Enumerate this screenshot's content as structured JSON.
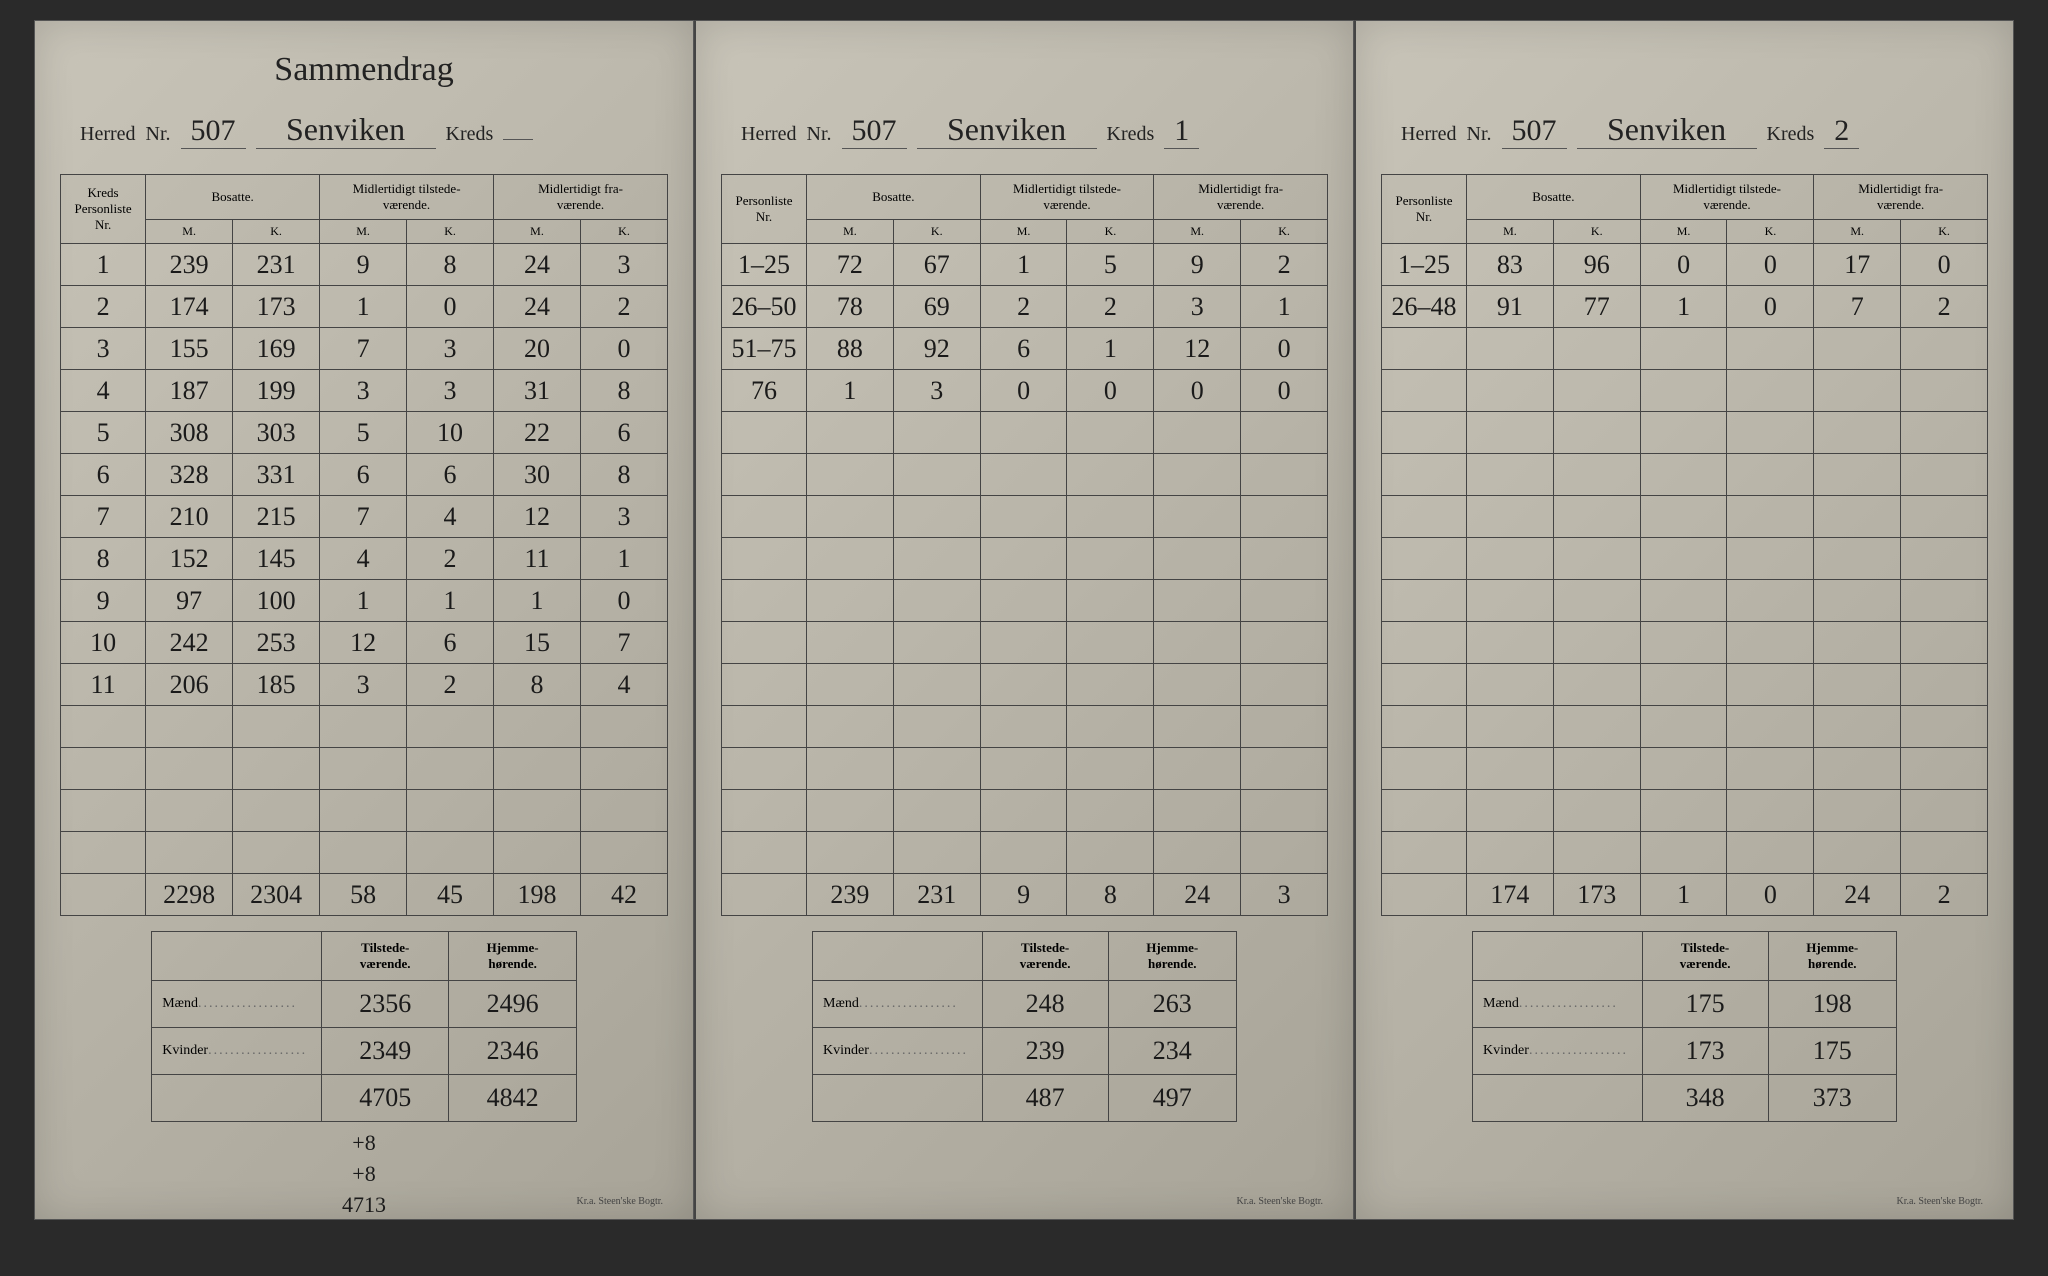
{
  "pages": [
    {
      "super_title": "Sammendrag",
      "header": {
        "herred_label": "Herred",
        "nr_label": "Nr.",
        "nr": "507",
        "name": "Senviken",
        "kreds_label": "Kreds",
        "kreds": ""
      },
      "col_nr": "Kreds\nPersonliste\nNr.",
      "groups": [
        "Bosatte.",
        "Midlertidigt tilstede-\nværende.",
        "Midlertidigt fra-\nværende."
      ],
      "sub": [
        "M.",
        "K.",
        "M.",
        "K.",
        "M.",
        "K."
      ],
      "rows": [
        [
          "1",
          "239",
          "231",
          "9",
          "8",
          "24",
          "3"
        ],
        [
          "2",
          "174",
          "173",
          "1",
          "0",
          "24",
          "2"
        ],
        [
          "3",
          "155",
          "169",
          "7",
          "3",
          "20",
          "0"
        ],
        [
          "4",
          "187",
          "199",
          "3",
          "3",
          "31",
          "8"
        ],
        [
          "5",
          "308",
          "303",
          "5",
          "10",
          "22",
          "6"
        ],
        [
          "6",
          "328",
          "331",
          "6",
          "6",
          "30",
          "8"
        ],
        [
          "7",
          "210",
          "215",
          "7",
          "4",
          "12",
          "3"
        ],
        [
          "8",
          "152",
          "145",
          "4",
          "2",
          "11",
          "1"
        ],
        [
          "9",
          "97",
          "100",
          "1",
          "1",
          "1",
          "0"
        ],
        [
          "10",
          "242",
          "253",
          "12",
          "6",
          "15",
          "7"
        ],
        [
          "11",
          "206",
          "185",
          "3",
          "2",
          "8",
          "4"
        ]
      ],
      "blank_rows": 4,
      "totals": [
        "",
        "2298",
        "2304",
        "58",
        "45",
        "198",
        "42"
      ],
      "summary": {
        "headers": [
          "",
          "Tilstede-\nværende.",
          "Hjemme-\nhørende."
        ],
        "rows": [
          [
            "Mænd",
            "2356",
            "2496"
          ],
          [
            "Kvinder",
            "2349",
            "2346"
          ],
          [
            "",
            "4705",
            "4842"
          ]
        ],
        "extra": [
          "+8",
          "+8",
          "4713"
        ]
      },
      "footer": "Kr.a.  Steen'ske Bogtr."
    },
    {
      "super_title": "",
      "header": {
        "herred_label": "Herred",
        "nr_label": "Nr.",
        "nr": "507",
        "name": "Senviken",
        "kreds_label": "Kreds",
        "kreds": "1"
      },
      "col_nr": "Personliste\nNr.",
      "groups": [
        "Bosatte.",
        "Midlertidigt tilstede-\nværende.",
        "Midlertidigt fra-\nværende."
      ],
      "sub": [
        "M.",
        "K.",
        "M.",
        "K.",
        "M.",
        "K."
      ],
      "rows": [
        [
          "1–25",
          "72",
          "67",
          "1",
          "5",
          "9",
          "2"
        ],
        [
          "26–50",
          "78",
          "69",
          "2",
          "2",
          "3",
          "1"
        ],
        [
          "51–75",
          "88",
          "92",
          "6",
          "1",
          "12",
          "0"
        ],
        [
          "76",
          "1",
          "3",
          "0",
          "0",
          "0",
          "0"
        ]
      ],
      "blank_rows": 11,
      "totals": [
        "",
        "239",
        "231",
        "9",
        "8",
        "24",
        "3"
      ],
      "summary": {
        "headers": [
          "",
          "Tilstede-\nværende.",
          "Hjemme-\nhørende."
        ],
        "rows": [
          [
            "Mænd",
            "248",
            "263"
          ],
          [
            "Kvinder",
            "239",
            "234"
          ],
          [
            "",
            "487",
            "497"
          ]
        ],
        "extra": []
      },
      "footer": "Kr.a.  Steen'ske Bogtr."
    },
    {
      "super_title": "",
      "header": {
        "herred_label": "Herred",
        "nr_label": "Nr.",
        "nr": "507",
        "name": "Senviken",
        "kreds_label": "Kreds",
        "kreds": "2"
      },
      "col_nr": "Personliste\nNr.",
      "groups": [
        "Bosatte.",
        "Midlertidigt tilstede-\nværende.",
        "Midlertidigt fra-\nværende."
      ],
      "sub": [
        "M.",
        "K.",
        "M.",
        "K.",
        "M.",
        "K."
      ],
      "rows": [
        [
          "1–25",
          "83",
          "96",
          "0",
          "0",
          "17",
          "0"
        ],
        [
          "26–48",
          "91",
          "77",
          "1",
          "0",
          "7",
          "2"
        ]
      ],
      "blank_rows": 13,
      "totals": [
        "",
        "174",
        "173",
        "1",
        "0",
        "24",
        "2"
      ],
      "summary": {
        "headers": [
          "",
          "Tilstede-\nværende.",
          "Hjemme-\nhørende."
        ],
        "rows": [
          [
            "Mænd",
            "175",
            "198"
          ],
          [
            "Kvinder",
            "173",
            "175"
          ],
          [
            "",
            "348",
            "373"
          ]
        ],
        "extra": []
      },
      "footer": "Kr.a.  Steen'ske Bogtr."
    }
  ]
}
